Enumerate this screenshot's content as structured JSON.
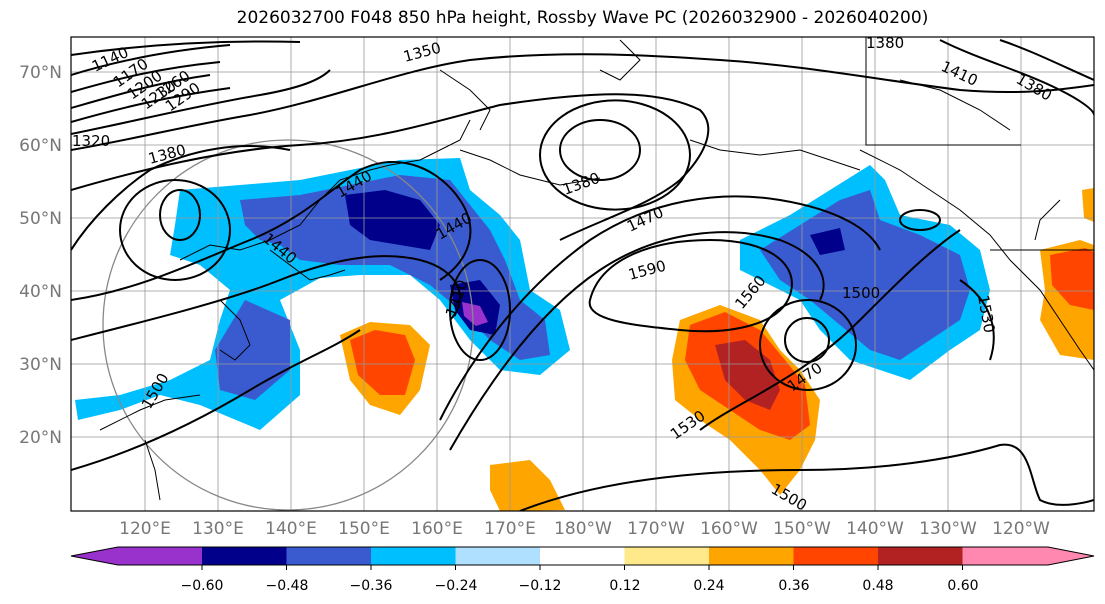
{
  "title": "2026032700 F048 850 hPa height, Rossby Wave PC (2026032900 - 2026040200)",
  "map": {
    "lat_labels": [
      "70°N",
      "60°N",
      "50°N",
      "40°N",
      "30°N",
      "20°N"
    ],
    "lon_labels": [
      "120°E",
      "130°E",
      "140°E",
      "150°E",
      "160°E",
      "170°E",
      "180°W",
      "170°W",
      "160°W",
      "150°W",
      "140°W",
      "130°W",
      "120°W"
    ],
    "contour_labels": [
      "1140",
      "1170",
      "1200",
      "1230",
      "1260",
      "1290",
      "1350",
      "1320",
      "1380",
      "1380",
      "1380",
      "1410",
      "1380",
      "1440",
      "1440",
      "1440",
      "1470",
      "1410",
      "1590",
      "1560",
      "1500",
      "1530",
      "1470",
      "1530",
      "1500",
      "1500"
    ]
  },
  "colorbar": {
    "tick_labels": [
      "−0.60",
      "−0.48",
      "−0.36",
      "−0.24",
      "−0.12",
      "0.12",
      "0.24",
      "0.36",
      "0.48",
      "0.60"
    ],
    "colors": [
      "#9932cc",
      "#00008b",
      "#3a5bd0",
      "#00bfff",
      "#b0e0ff",
      "#ffffff",
      "#ffe98a",
      "#ffa500",
      "#ff4500",
      "#b22222",
      "#ff88b0"
    ]
  },
  "colors": {
    "grid": "#999999",
    "contour": "#000000",
    "axis_label": "#777777"
  }
}
